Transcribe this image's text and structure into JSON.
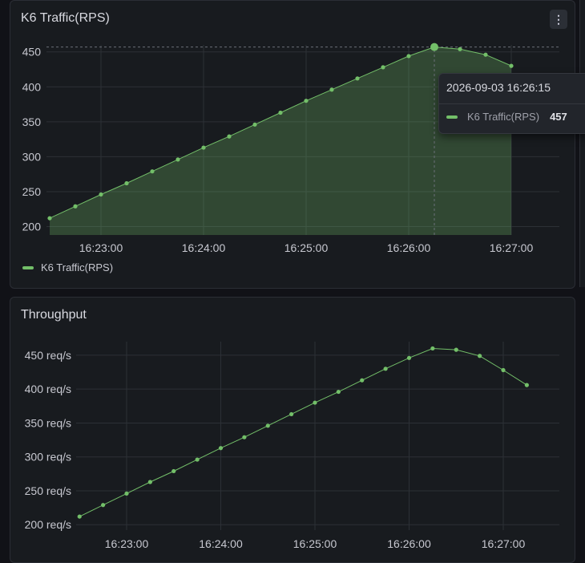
{
  "panels": [
    {
      "title": "K6 Traffic(RPS)",
      "menu_icon": "⋮",
      "legend": "K6 Traffic(RPS)",
      "tooltip": {
        "time": "2026-09-03 16:26:15",
        "series": "K6 Traffic(RPS)",
        "value": "457"
      }
    },
    {
      "title": "Throughput"
    }
  ],
  "colors": {
    "series": "#73bf69",
    "background": "#181b1f",
    "grid": "#2c3036"
  },
  "chart_data": [
    {
      "type": "area",
      "title": "K6 Traffic(RPS)",
      "series": [
        {
          "name": "K6 Traffic(RPS)",
          "x": [
            "16:22:30",
            "16:22:45",
            "16:23:00",
            "16:23:15",
            "16:23:30",
            "16:23:45",
            "16:24:00",
            "16:24:15",
            "16:24:30",
            "16:24:45",
            "16:25:00",
            "16:25:15",
            "16:25:30",
            "16:25:45",
            "16:26:00",
            "16:26:15",
            "16:26:30",
            "16:26:45",
            "16:27:00"
          ],
          "values": [
            212,
            229,
            246,
            262,
            279,
            296,
            313,
            329,
            346,
            363,
            380,
            396,
            412,
            428,
            444,
            457,
            454,
            446,
            430
          ]
        }
      ],
      "x_ticks": [
        "16:23:00",
        "16:24:00",
        "16:25:00",
        "16:26:00",
        "16:27:00"
      ],
      "y_ticks": [
        "200",
        "250",
        "300",
        "350",
        "400",
        "450"
      ],
      "ylim": [
        188,
        460
      ],
      "legend": "bottom-left",
      "grid": true
    },
    {
      "type": "line",
      "title": "Throughput",
      "series": [
        {
          "name": "",
          "x": [
            "16:22:30",
            "16:22:45",
            "16:23:00",
            "16:23:15",
            "16:23:30",
            "16:23:45",
            "16:24:00",
            "16:24:15",
            "16:24:30",
            "16:24:45",
            "16:25:00",
            "16:25:15",
            "16:25:30",
            "16:25:45",
            "16:26:00",
            "16:26:15",
            "16:26:30",
            "16:26:45",
            "16:27:00",
            "16:27:15"
          ],
          "values": [
            212,
            229,
            246,
            263,
            279,
            296,
            313,
            329,
            346,
            363,
            380,
            396,
            413,
            430,
            446,
            460,
            458,
            449,
            428,
            406
          ]
        }
      ],
      "x_ticks": [
        "16:23:00",
        "16:24:00",
        "16:25:00",
        "16:26:00",
        "16:27:00"
      ],
      "y_ticks": [
        "200 req/s",
        "250 req/s",
        "300 req/s",
        "350 req/s",
        "400 req/s",
        "450 req/s"
      ],
      "ylim": [
        192,
        470
      ],
      "grid": true
    }
  ]
}
